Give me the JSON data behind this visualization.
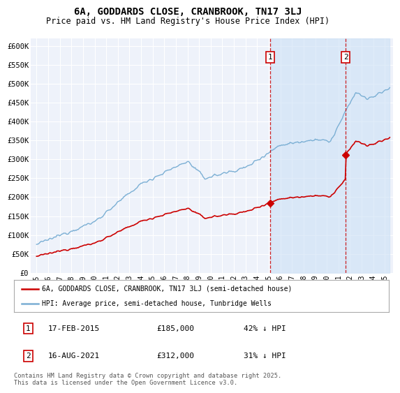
{
  "title": "6A, GODDARDS CLOSE, CRANBROOK, TN17 3LJ",
  "subtitle": "Price paid vs. HM Land Registry's House Price Index (HPI)",
  "hpi_color": "#7bafd4",
  "hpi_fill_color": "#ddeeff",
  "price_color": "#cc0000",
  "vline_color": "#cc0000",
  "background_color": "#ffffff",
  "plot_bg_color": "#eef2fa",
  "grid_color": "#ffffff",
  "ylim": [
    0,
    620000
  ],
  "yticks": [
    0,
    50000,
    100000,
    150000,
    200000,
    250000,
    300000,
    350000,
    400000,
    450000,
    500000,
    550000,
    600000
  ],
  "ytick_labels": [
    "£0",
    "£50K",
    "£100K",
    "£150K",
    "£200K",
    "£250K",
    "£300K",
    "£350K",
    "£400K",
    "£450K",
    "£500K",
    "£550K",
    "£600K"
  ],
  "legend_line1": "6A, GODDARDS CLOSE, CRANBROOK, TN17 3LJ (semi-detached house)",
  "legend_line2": "HPI: Average price, semi-detached house, Tunbridge Wells",
  "sale1_date": "17-FEB-2015",
  "sale1_price": 185000,
  "sale1_pct": "42% ↓ HPI",
  "sale1_label": "1",
  "sale1_year": 2015.12,
  "sale2_date": "16-AUG-2021",
  "sale2_price": 312000,
  "sale2_pct": "31% ↓ HPI",
  "sale2_label": "2",
  "sale2_year": 2021.62,
  "footer": "Contains HM Land Registry data © Crown copyright and database right 2025.\nThis data is licensed under the Open Government Licence v3.0."
}
